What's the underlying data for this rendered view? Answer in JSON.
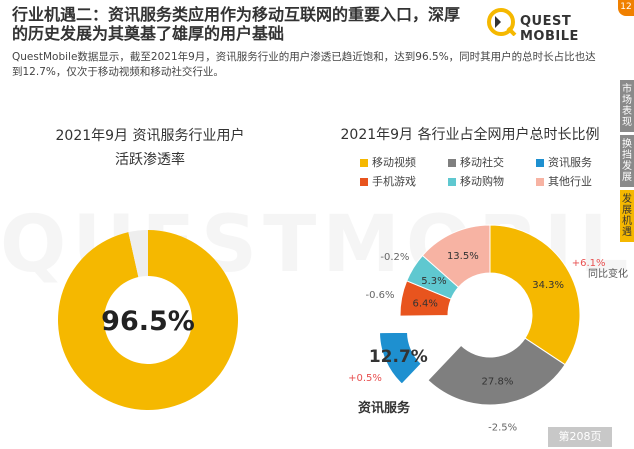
{
  "header": {
    "title_line1": "行业机遇二：资讯服务类应用作为移动互联网的重要入口，深厚",
    "title_line2": "的历史发展为其奠基了雄厚的用户基础",
    "logo_text": "QUEST MOBILE",
    "summary_line1": "QuestMobile数据显示，截至2021年9月，资讯服务行业的用户渗透已趋近饱和，达到96.5%，同时其用户的总时长占比也达",
    "summary_line2": "到12.7%，仅次于移动视频和移动社交行业。"
  },
  "side_tabs": [
    {
      "label": "市场表现",
      "active": false
    },
    {
      "label": "换挡发展",
      "active": false
    },
    {
      "label": "发展机遇",
      "active": true
    }
  ],
  "badge": "12",
  "watermark": "QUESTMOBILE",
  "page_label": "第208页",
  "chart_data": [
    {
      "type": "pie",
      "title_line1": "2021年9月 资讯服务行业用户",
      "title_line2": "活跃渗透率",
      "values": [
        96.5,
        3.5
      ],
      "center_label": "96.5%",
      "colors": [
        "#f5b800",
        "#eeeeee"
      ]
    },
    {
      "type": "pie",
      "title": "2021年9月 各行业占全网用户总时长比例",
      "legend": [
        {
          "name": "移动视频",
          "color": "#f5b800"
        },
        {
          "name": "移动社交",
          "color": "#7f7f7f"
        },
        {
          "name": "资讯服务",
          "color": "#1e90d0"
        },
        {
          "name": "手机游戏",
          "color": "#e8541e"
        },
        {
          "name": "移动购物",
          "color": "#5fc8d0"
        },
        {
          "name": "其他行业",
          "color": "#f7b3a3"
        }
      ],
      "slices": [
        {
          "name": "移动视频",
          "value": 34.3,
          "label": "34.3%",
          "change": "+6.1%",
          "color": "#f5b800",
          "label_color": "#333333"
        },
        {
          "name": "移动社交",
          "value": 27.8,
          "label": "27.8%",
          "change": "-2.5%",
          "color": "#7f7f7f",
          "label_color": "#333333"
        },
        {
          "name": "资讯服务",
          "value": 12.7,
          "label": "12.7%",
          "change": "+0.5%",
          "color": "#1e90d0",
          "label_color": "#333333",
          "exploded": true
        },
        {
          "name": "手机游戏",
          "value": 6.4,
          "label": "6.4%",
          "change": "-0.6%",
          "color": "#e8541e",
          "label_color": "#333333"
        },
        {
          "name": "移动购物",
          "value": 5.3,
          "label": "5.3%",
          "change": "-0.2%",
          "color": "#5fc8d0",
          "label_color": "#333333"
        },
        {
          "name": "其他行业",
          "value": 13.5,
          "label": "13.5%",
          "change": "",
          "color": "#f7b3a3",
          "label_color": "#333333"
        }
      ],
      "change_header": "同比变化",
      "highlight_label": "资讯服务",
      "positive_color": "#e85050",
      "negative_color": "#666666"
    }
  ]
}
